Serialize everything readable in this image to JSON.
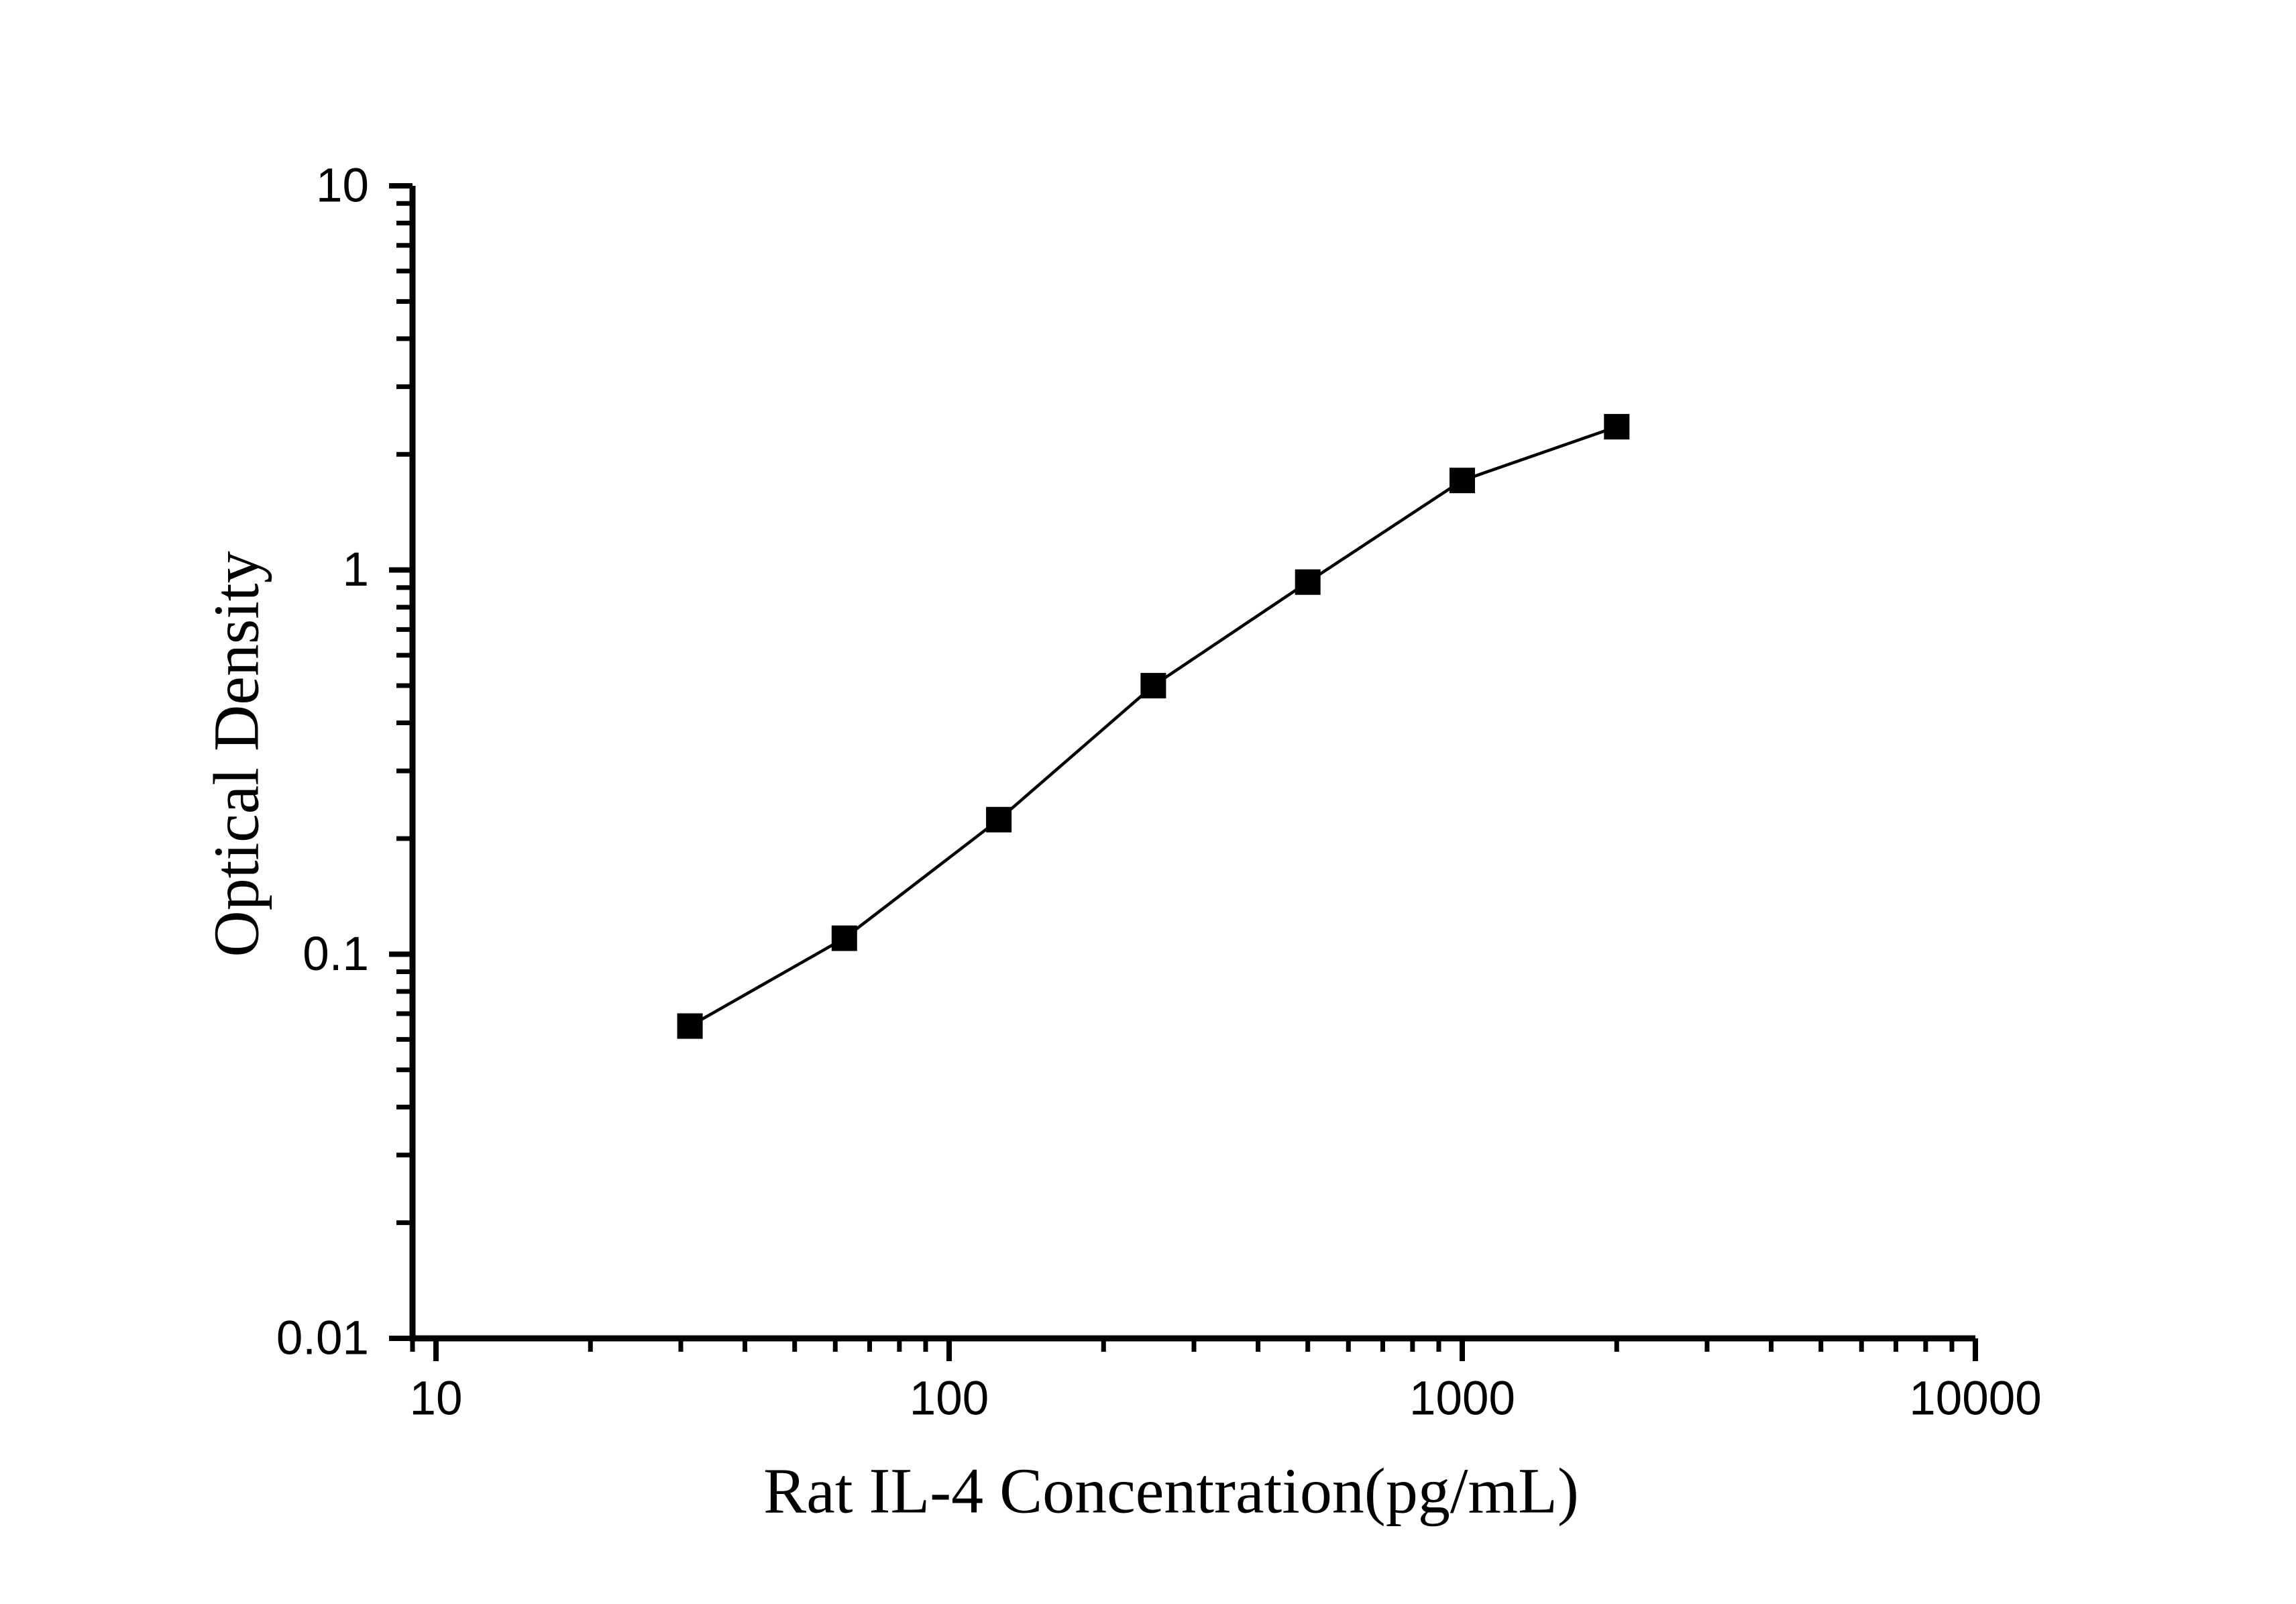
{
  "chart_data": {
    "type": "line",
    "title": "",
    "xlabel": "Rat IL-4 Concentration(pg/mL)",
    "ylabel": "Optical Density",
    "x_scale": "log",
    "y_scale": "log",
    "xlim": [
      9,
      10000
    ],
    "ylim": [
      0.01,
      10
    ],
    "x": [
      31.25,
      62.5,
      125,
      250,
      500,
      1000,
      2000
    ],
    "y": [
      0.065,
      0.11,
      0.224,
      0.5,
      0.93,
      1.71,
      2.36
    ],
    "marker": "filled-square",
    "marker_color": "#000000",
    "line_color": "#000000",
    "axis_color": "#000000",
    "x_tick_values": [
      10,
      100,
      1000,
      10000
    ],
    "x_tick_labels": [
      "10",
      "100",
      "1000",
      "10000"
    ],
    "y_tick_values": [
      10,
      1,
      0.1,
      0.01
    ],
    "y_tick_labels": [
      "10",
      "1",
      "0.1",
      "0.01"
    ],
    "grid": false,
    "legend": "none"
  }
}
